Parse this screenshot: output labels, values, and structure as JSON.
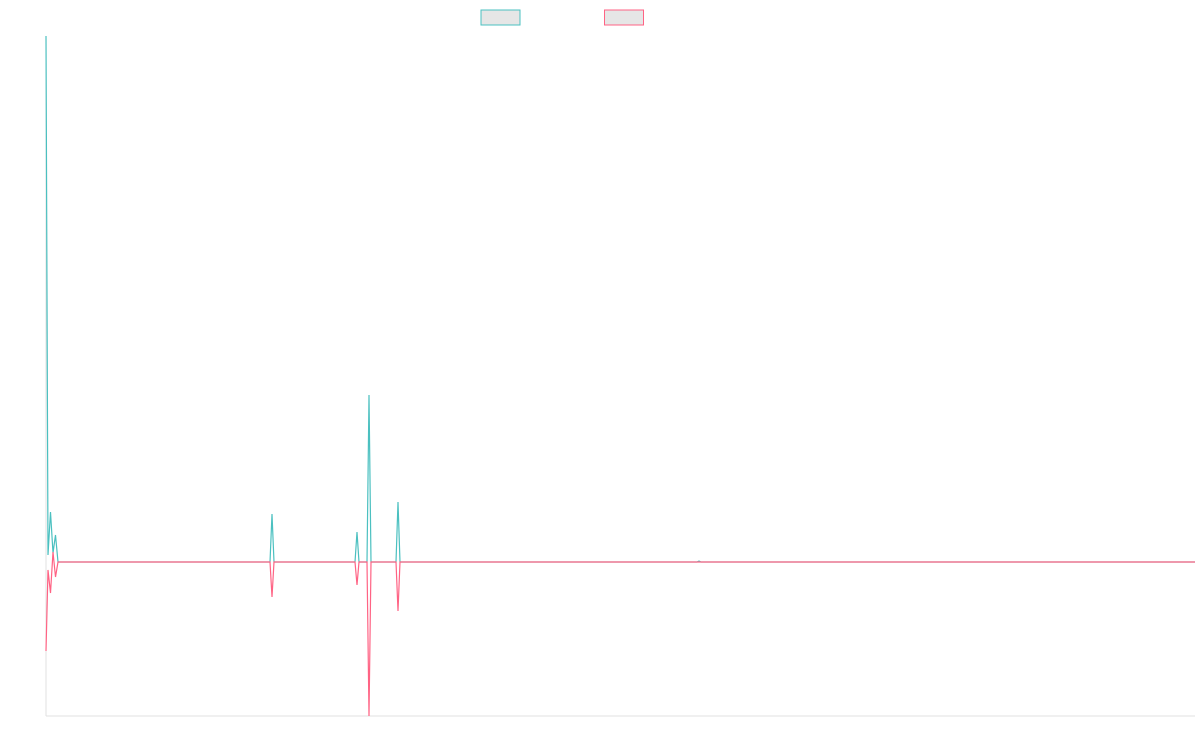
{
  "chart_data": {
    "type": "line",
    "x": [
      0,
      2,
      4.5,
      7,
      9.5,
      12,
      224,
      226,
      228,
      309,
      311,
      313,
      321,
      323,
      325,
      350,
      352,
      354,
      651,
      653,
      655,
      1149
    ],
    "xlim": [
      0,
      1149
    ],
    "ylim": [
      -154,
      526
    ],
    "legend": "top",
    "series": [
      {
        "color": "#4bc0c0",
        "values": [
          526,
          7,
          50,
          9,
          27,
          0,
          0,
          48,
          0,
          0,
          30,
          0,
          0,
          167,
          0,
          0,
          60,
          0,
          0,
          1,
          0,
          0
        ]
      },
      {
        "color": "#ff6384",
        "values": [
          -89,
          -8,
          -31,
          10,
          -15,
          0,
          0,
          -35,
          0,
          0,
          -23,
          0,
          0,
          -154,
          0,
          0,
          -49,
          0,
          0,
          0,
          0,
          0
        ]
      }
    ]
  }
}
